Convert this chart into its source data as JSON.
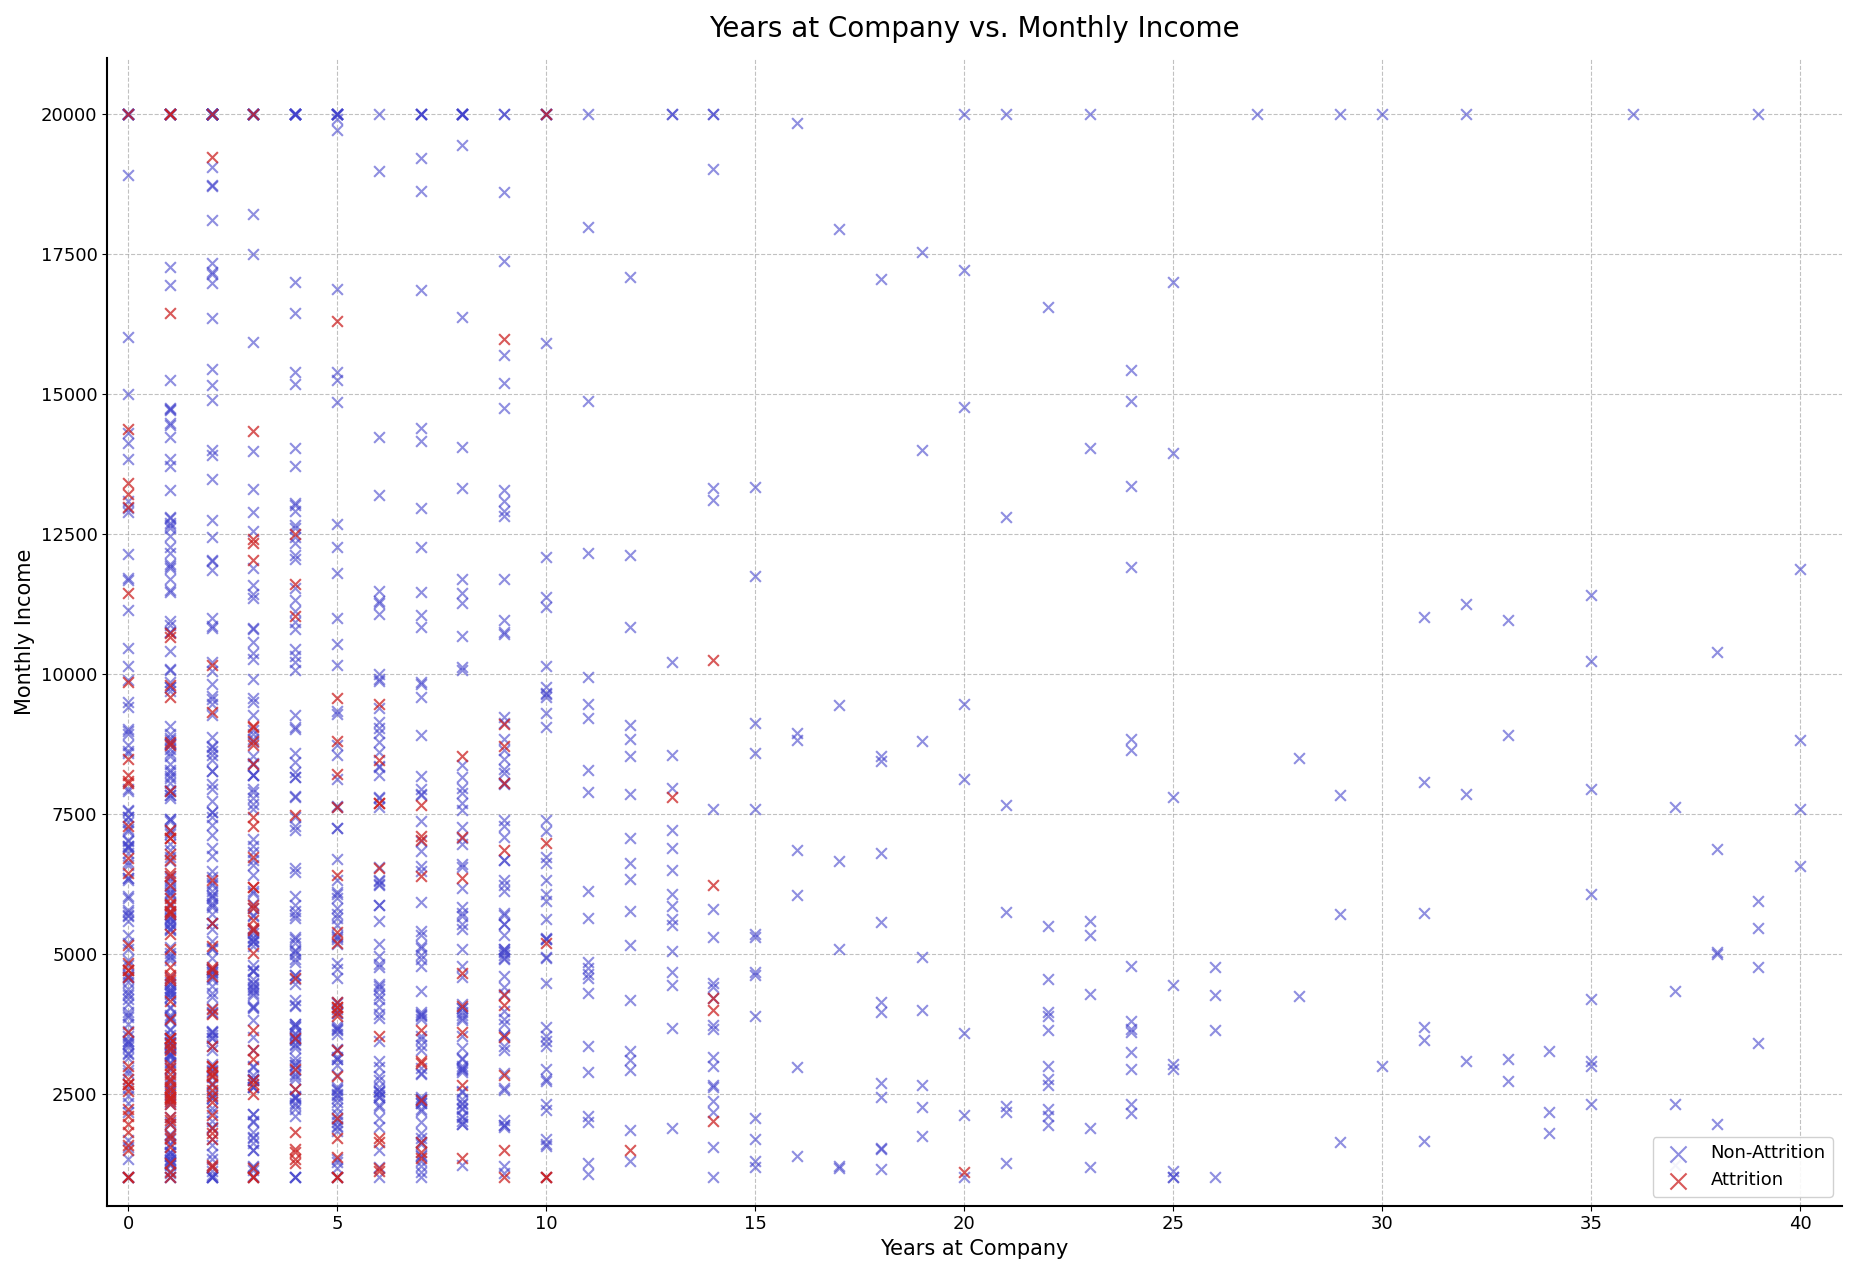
{
  "title": "Years at Company vs. Monthly Income",
  "xlabel": "Years at Company",
  "ylabel": "Monthly Income",
  "xlim": [
    -0.5,
    41
  ],
  "ylim": [
    500,
    21000
  ],
  "xticks": [
    0,
    5,
    10,
    15,
    20,
    25,
    30,
    35,
    40
  ],
  "yticks": [
    2500,
    5000,
    7500,
    10000,
    12500,
    15000,
    17500,
    20000
  ],
  "non_att_color": "#4444cc",
  "att_color": "#cc2222",
  "marker_size": 60,
  "marker_linewidth": 1.5,
  "alpha_non": 0.6,
  "alpha_att": 0.75,
  "legend_labels": [
    "Non-Attrition",
    "Attrition"
  ],
  "grid_color": "#999999",
  "grid_linestyle": "--",
  "grid_alpha": 0.6,
  "title_fontsize": 20,
  "label_fontsize": 15,
  "tick_fontsize": 13,
  "legend_fontsize": 13,
  "background_color": "#ffffff"
}
